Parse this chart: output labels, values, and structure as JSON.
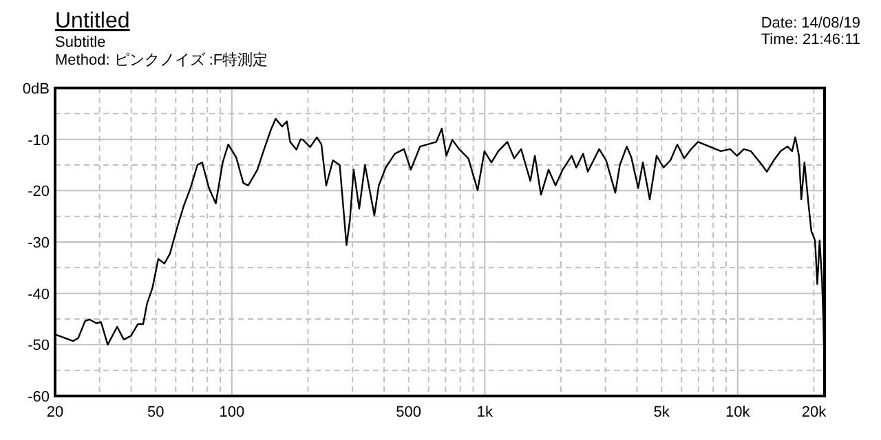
{
  "chart_data": {
    "type": "line",
    "title": "Untitled",
    "subtitle": "Subtitle",
    "annotations": [
      "Method: ピンクノイズ :F特測定",
      "Date: 14/08/19",
      "Time: 21:46:11"
    ],
    "log": "x",
    "grid": true,
    "xlim": [
      20,
      22050
    ],
    "ylim": [
      -60,
      0
    ],
    "xticks": [
      20,
      50,
      100,
      500,
      {
        "value": 1000,
        "label": "1k"
      },
      {
        "value": 5000,
        "label": "5k"
      },
      {
        "value": 10000,
        "label": "10k"
      },
      {
        "value": 20000,
        "label": "20k"
      }
    ],
    "yticks": [
      {
        "value": 0,
        "label": "0dB"
      },
      -10,
      -20,
      -30,
      -40,
      -50,
      -60
    ],
    "series": [
      {
        "color": "#000000",
        "x": [
          20,
          23.6,
          24.7,
          26.3,
          27.4,
          29.1,
          30.4,
          32.3,
          35.2,
          37.4,
          39.9,
          42.5,
          44.6,
          46.2,
          48.5,
          51.2,
          54.1,
          56.9,
          60.5,
          64.5,
          68.6,
          73.1,
          76.3,
          81.2,
          86.4,
          92,
          96.8,
          104,
          111,
          116,
          126,
          134,
          143,
          149,
          158,
          165,
          170,
          180,
          187,
          191,
          204,
          217,
          226,
          236,
          251,
          267,
          284,
          293,
          303,
          319,
          336,
          366,
          381,
          406,
          441,
          479,
          510,
          555,
          643,
          676,
          705,
          744,
          792,
          861,
          937,
          997,
          1062,
          1131,
          1228,
          1307,
          1392,
          1514,
          1578,
          1668,
          1788,
          1904,
          2028,
          2206,
          2300,
          2448,
          2554,
          2834,
          3018,
          3282,
          3420,
          3642,
          3796,
          4042,
          4218,
          4490,
          4780,
          5090,
          5420,
          5770,
          6144,
          6542,
          6966,
          7730,
          8578,
          9332,
          9936,
          10578,
          11264,
          12248,
          13042,
          13886,
          14786,
          15742,
          16408,
          16890,
          17470,
          17844,
          18368,
          19000,
          19554,
          20220,
          20640,
          21080,
          21540,
          21820,
          22000
        ],
        "values": [
          -48,
          -49.3,
          -48.7,
          -45.4,
          -45.1,
          -45.8,
          -45.6,
          -50,
          -46.5,
          -49,
          -48.3,
          -46,
          -46,
          -42,
          -39,
          -33.3,
          -34.2,
          -32.3,
          -27.5,
          -23,
          -19.5,
          -15,
          -14.5,
          -19.5,
          -22.5,
          -14.5,
          -11,
          -13.5,
          -18.5,
          -19,
          -16,
          -12,
          -8,
          -6,
          -7.5,
          -6.5,
          -10.5,
          -12,
          -10,
          -10.1,
          -11.5,
          -9.6,
          -11,
          -19,
          -14.1,
          -15,
          -30.6,
          -25.7,
          -15.9,
          -23.5,
          -15,
          -24.8,
          -19,
          -15.5,
          -12.8,
          -11.9,
          -15.9,
          -11.4,
          -10.5,
          -7.9,
          -13.2,
          -10.1,
          -11.9,
          -13.7,
          -19.9,
          -12.3,
          -14.5,
          -12.3,
          -10.5,
          -13.7,
          -11.9,
          -18.1,
          -13.2,
          -20.8,
          -15.9,
          -19,
          -16,
          -13.2,
          -15.5,
          -12.8,
          -16.3,
          -11.9,
          -14.1,
          -20.4,
          -15,
          -11.4,
          -13.5,
          -19.5,
          -14.5,
          -21.7,
          -13.2,
          -15.5,
          -14.1,
          -11,
          -13.7,
          -11.9,
          -10.5,
          -11.4,
          -12.3,
          -11.9,
          -13.2,
          -11.9,
          -12.3,
          -14.5,
          -16.3,
          -14.1,
          -12.3,
          -11.4,
          -12.3,
          -9.6,
          -13.2,
          -21.7,
          -14.5,
          -22.1,
          -27.9,
          -29.7,
          -38.2,
          -29.7,
          -37.3,
          -45.4,
          -54.3
        ]
      }
    ]
  }
}
